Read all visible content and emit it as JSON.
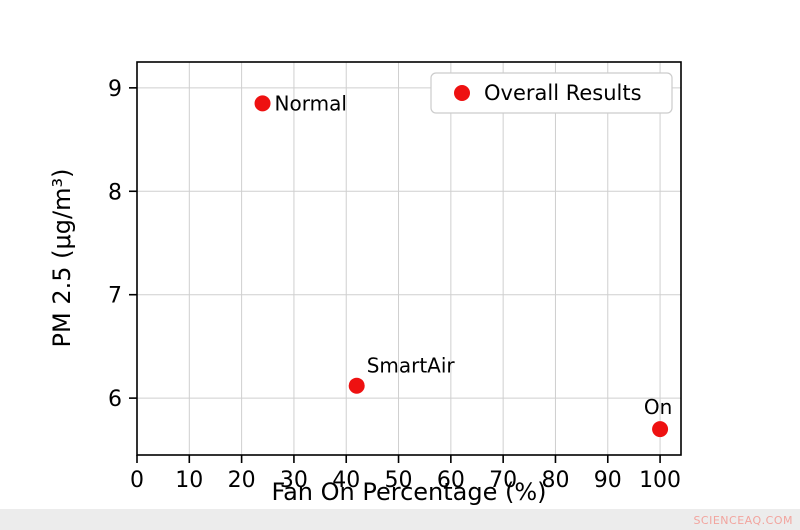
{
  "watermark": "SCIENCEAQ.COM",
  "chart_data": {
    "type": "scatter",
    "title": "",
    "xlabel": "Fan On Percentage (%)",
    "ylabel": "PM 2.5 (μg/m³)",
    "xlim": [
      0,
      104
    ],
    "ylim": [
      5.45,
      9.25
    ],
    "xticks": [
      0,
      10,
      20,
      30,
      40,
      50,
      60,
      70,
      80,
      90,
      100
    ],
    "yticks": [
      6,
      7,
      8,
      9
    ],
    "grid": true,
    "legend": {
      "label": "Overall Results",
      "position": "upper right"
    },
    "marker_color": "#ee1111",
    "grid_color": "#cfcfcf",
    "series": [
      {
        "name": "Overall Results",
        "points": [
          {
            "label": "Normal",
            "x": 24,
            "y": 8.85,
            "label_dx": 12,
            "label_dy": 7,
            "label_anchor": "start"
          },
          {
            "label": "SmartAir",
            "x": 42,
            "y": 6.12,
            "label_dx": 10,
            "label_dy": -13,
            "label_anchor": "start"
          },
          {
            "label": "On",
            "x": 100,
            "y": 5.7,
            "label_dx": -2,
            "label_dy": -15,
            "label_anchor": "middle"
          }
        ]
      }
    ]
  }
}
